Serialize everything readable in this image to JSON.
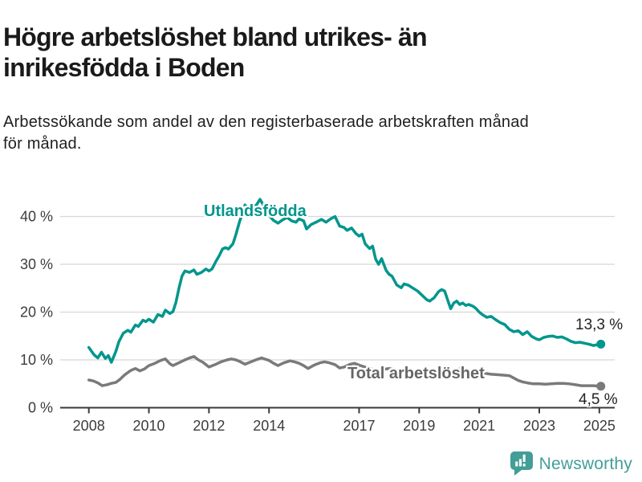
{
  "header": {
    "title_lines": [
      "Högre arbetslöshet bland utrikes- än",
      "inrikesfödda i Boden"
    ],
    "subtitle_lines": [
      "Arbetssökande som andel av den registerbaserade arbetskraften månad",
      "för månad."
    ]
  },
  "chart_data": {
    "type": "line",
    "unit": "%",
    "x_axis": {
      "ticks": [
        2008,
        2010,
        2012,
        2014,
        2017,
        2019,
        2021,
        2023,
        2025
      ],
      "range": [
        2007.05,
        2025.5
      ]
    },
    "y_axis": {
      "ticks": [
        0,
        10,
        20,
        30,
        40
      ],
      "tick_suffix": " %",
      "range": [
        0,
        44
      ],
      "grid": true
    },
    "grid_color": "#d8d8d8",
    "axis_color": "#3a3a3a",
    "tick_label_color": "#3c3c3c",
    "series": [
      {
        "name": "Utlandsfödda",
        "color": "#00968c",
        "end_value": 13.3,
        "end_label": "13,3 %",
        "points": [
          [
            2008.0,
            12.6
          ],
          [
            2008.17,
            11.1
          ],
          [
            2008.3,
            10.4
          ],
          [
            2008.42,
            11.6
          ],
          [
            2008.55,
            10.3
          ],
          [
            2008.65,
            10.9
          ],
          [
            2008.75,
            9.5
          ],
          [
            2008.9,
            11.8
          ],
          [
            2009.0,
            13.8
          ],
          [
            2009.15,
            15.6
          ],
          [
            2009.3,
            16.2
          ],
          [
            2009.4,
            15.8
          ],
          [
            2009.55,
            17.3
          ],
          [
            2009.65,
            17.0
          ],
          [
            2009.8,
            18.3
          ],
          [
            2009.9,
            18.0
          ],
          [
            2010.0,
            18.5
          ],
          [
            2010.15,
            17.9
          ],
          [
            2010.3,
            19.5
          ],
          [
            2010.45,
            19.1
          ],
          [
            2010.55,
            20.4
          ],
          [
            2010.7,
            19.7
          ],
          [
            2010.8,
            20.1
          ],
          [
            2010.9,
            22.0
          ],
          [
            2011.0,
            25.0
          ],
          [
            2011.1,
            27.5
          ],
          [
            2011.2,
            28.6
          ],
          [
            2011.35,
            28.3
          ],
          [
            2011.5,
            28.8
          ],
          [
            2011.6,
            27.9
          ],
          [
            2011.75,
            28.3
          ],
          [
            2011.9,
            29.0
          ],
          [
            2012.0,
            28.6
          ],
          [
            2012.1,
            29.0
          ],
          [
            2012.25,
            30.8
          ],
          [
            2012.35,
            31.9
          ],
          [
            2012.45,
            33.2
          ],
          [
            2012.55,
            33.5
          ],
          [
            2012.65,
            33.2
          ],
          [
            2012.8,
            34.3
          ],
          [
            2012.9,
            36.3
          ],
          [
            2013.0,
            38.5
          ],
          [
            2013.1,
            40.5
          ],
          [
            2013.2,
            42.4
          ],
          [
            2013.35,
            41.2
          ],
          [
            2013.5,
            41.8
          ],
          [
            2013.6,
            42.6
          ],
          [
            2013.7,
            43.6
          ],
          [
            2013.85,
            42.0
          ],
          [
            2014.0,
            40.2
          ],
          [
            2014.15,
            39.2
          ],
          [
            2014.3,
            38.6
          ],
          [
            2014.45,
            39.3
          ],
          [
            2014.6,
            39.8
          ],
          [
            2014.75,
            39.1
          ],
          [
            2014.9,
            38.8
          ],
          [
            2015.0,
            39.5
          ],
          [
            2015.15,
            39.1
          ],
          [
            2015.25,
            37.4
          ],
          [
            2015.4,
            38.3
          ],
          [
            2015.6,
            38.9
          ],
          [
            2015.75,
            39.4
          ],
          [
            2015.9,
            38.8
          ],
          [
            2016.05,
            39.5
          ],
          [
            2016.2,
            40.0
          ],
          [
            2016.35,
            38.0
          ],
          [
            2016.5,
            37.7
          ],
          [
            2016.6,
            37.1
          ],
          [
            2016.75,
            37.6
          ],
          [
            2016.9,
            36.4
          ],
          [
            2017.0,
            35.9
          ],
          [
            2017.1,
            36.3
          ],
          [
            2017.2,
            34.3
          ],
          [
            2017.35,
            33.3
          ],
          [
            2017.45,
            33.8
          ],
          [
            2017.55,
            31.1
          ],
          [
            2017.65,
            30.0
          ],
          [
            2017.75,
            31.2
          ],
          [
            2017.9,
            28.7
          ],
          [
            2018.0,
            27.9
          ],
          [
            2018.1,
            27.5
          ],
          [
            2018.25,
            25.7
          ],
          [
            2018.4,
            25.1
          ],
          [
            2018.5,
            25.9
          ],
          [
            2018.65,
            25.6
          ],
          [
            2018.8,
            25.0
          ],
          [
            2018.95,
            24.4
          ],
          [
            2019.1,
            23.5
          ],
          [
            2019.25,
            22.6
          ],
          [
            2019.35,
            22.3
          ],
          [
            2019.5,
            23.0
          ],
          [
            2019.65,
            24.3
          ],
          [
            2019.75,
            24.7
          ],
          [
            2019.85,
            24.4
          ],
          [
            2019.95,
            22.5
          ],
          [
            2020.05,
            20.7
          ],
          [
            2020.15,
            21.9
          ],
          [
            2020.25,
            22.3
          ],
          [
            2020.35,
            21.6
          ],
          [
            2020.45,
            21.9
          ],
          [
            2020.55,
            21.4
          ],
          [
            2020.65,
            21.6
          ],
          [
            2020.8,
            21.2
          ],
          [
            2020.9,
            20.7
          ],
          [
            2021.0,
            20.0
          ],
          [
            2021.1,
            19.5
          ],
          [
            2021.25,
            18.9
          ],
          [
            2021.4,
            19.1
          ],
          [
            2021.55,
            18.4
          ],
          [
            2021.7,
            17.8
          ],
          [
            2021.85,
            17.4
          ],
          [
            2022.0,
            16.4
          ],
          [
            2022.15,
            15.9
          ],
          [
            2022.3,
            16.1
          ],
          [
            2022.45,
            15.3
          ],
          [
            2022.6,
            15.9
          ],
          [
            2022.75,
            14.9
          ],
          [
            2022.9,
            14.4
          ],
          [
            2023.0,
            14.2
          ],
          [
            2023.15,
            14.7
          ],
          [
            2023.3,
            14.9
          ],
          [
            2023.45,
            15.0
          ],
          [
            2023.6,
            14.7
          ],
          [
            2023.75,
            14.8
          ],
          [
            2023.9,
            14.4
          ],
          [
            2024.05,
            13.9
          ],
          [
            2024.2,
            13.6
          ],
          [
            2024.35,
            13.7
          ],
          [
            2024.5,
            13.5
          ],
          [
            2024.65,
            13.3
          ],
          [
            2024.8,
            13.0
          ],
          [
            2024.95,
            13.2
          ],
          [
            2025.05,
            13.3
          ]
        ]
      },
      {
        "name": "Total arbetslöshet",
        "color": "#7a7a7a",
        "end_value": 4.5,
        "end_label": "4,5 %",
        "points": [
          [
            2008.0,
            5.8
          ],
          [
            2008.15,
            5.6
          ],
          [
            2008.3,
            5.2
          ],
          [
            2008.45,
            4.6
          ],
          [
            2008.6,
            4.8
          ],
          [
            2008.75,
            5.1
          ],
          [
            2008.9,
            5.3
          ],
          [
            2009.05,
            6.0
          ],
          [
            2009.2,
            6.9
          ],
          [
            2009.4,
            7.8
          ],
          [
            2009.55,
            8.2
          ],
          [
            2009.7,
            7.7
          ],
          [
            2009.85,
            8.1
          ],
          [
            2010.0,
            8.8
          ],
          [
            2010.2,
            9.3
          ],
          [
            2010.4,
            9.9
          ],
          [
            2010.55,
            10.2
          ],
          [
            2010.7,
            9.2
          ],
          [
            2010.8,
            8.8
          ],
          [
            2011.0,
            9.4
          ],
          [
            2011.2,
            10.0
          ],
          [
            2011.35,
            10.4
          ],
          [
            2011.5,
            10.7
          ],
          [
            2011.65,
            10.0
          ],
          [
            2011.8,
            9.5
          ],
          [
            2012.0,
            8.5
          ],
          [
            2012.2,
            9.0
          ],
          [
            2012.4,
            9.6
          ],
          [
            2012.6,
            10.0
          ],
          [
            2012.75,
            10.2
          ],
          [
            2012.9,
            10.0
          ],
          [
            2013.05,
            9.6
          ],
          [
            2013.2,
            9.1
          ],
          [
            2013.4,
            9.6
          ],
          [
            2013.6,
            10.1
          ],
          [
            2013.75,
            10.4
          ],
          [
            2013.9,
            10.1
          ],
          [
            2014.0,
            9.9
          ],
          [
            2014.15,
            9.3
          ],
          [
            2014.3,
            8.8
          ],
          [
            2014.5,
            9.4
          ],
          [
            2014.7,
            9.8
          ],
          [
            2014.85,
            9.6
          ],
          [
            2015.0,
            9.3
          ],
          [
            2015.15,
            8.8
          ],
          [
            2015.3,
            8.2
          ],
          [
            2015.5,
            8.9
          ],
          [
            2015.7,
            9.4
          ],
          [
            2015.85,
            9.6
          ],
          [
            2016.0,
            9.4
          ],
          [
            2016.2,
            9.0
          ],
          [
            2016.35,
            8.3
          ],
          [
            2016.5,
            8.5
          ],
          [
            2016.7,
            9.1
          ],
          [
            2016.85,
            9.3
          ],
          [
            2017.0,
            8.9
          ],
          [
            2017.2,
            8.5
          ],
          [
            2017.4,
            8.1
          ],
          [
            2017.6,
            7.8
          ],
          [
            2017.8,
            8.0
          ],
          [
            2018.0,
            8.2
          ],
          [
            2018.2,
            7.9
          ],
          [
            2018.4,
            7.5
          ],
          [
            2018.6,
            7.3
          ],
          [
            2018.8,
            7.5
          ],
          [
            2019.0,
            7.7
          ],
          [
            2019.2,
            7.4
          ],
          [
            2019.4,
            7.0
          ],
          [
            2019.6,
            6.8
          ],
          [
            2019.8,
            7.0
          ],
          [
            2020.0,
            7.2
          ],
          [
            2020.2,
            7.8
          ],
          [
            2020.35,
            8.1
          ],
          [
            2020.55,
            7.9
          ],
          [
            2020.75,
            7.6
          ],
          [
            2021.0,
            7.4
          ],
          [
            2021.2,
            7.2
          ],
          [
            2021.4,
            7.0
          ],
          [
            2021.6,
            6.9
          ],
          [
            2021.8,
            6.8
          ],
          [
            2022.0,
            6.7
          ],
          [
            2022.15,
            6.2
          ],
          [
            2022.3,
            5.7
          ],
          [
            2022.45,
            5.4
          ],
          [
            2022.6,
            5.2
          ],
          [
            2022.8,
            5.0
          ],
          [
            2023.0,
            5.0
          ],
          [
            2023.2,
            4.9
          ],
          [
            2023.4,
            5.0
          ],
          [
            2023.6,
            5.1
          ],
          [
            2023.8,
            5.1
          ],
          [
            2024.0,
            5.0
          ],
          [
            2024.2,
            4.8
          ],
          [
            2024.4,
            4.6
          ],
          [
            2024.6,
            4.6
          ],
          [
            2024.8,
            4.6
          ],
          [
            2025.05,
            4.5
          ]
        ]
      }
    ]
  },
  "footer": {
    "brand": "Newsworthy",
    "brand_color": "#429e97"
  }
}
